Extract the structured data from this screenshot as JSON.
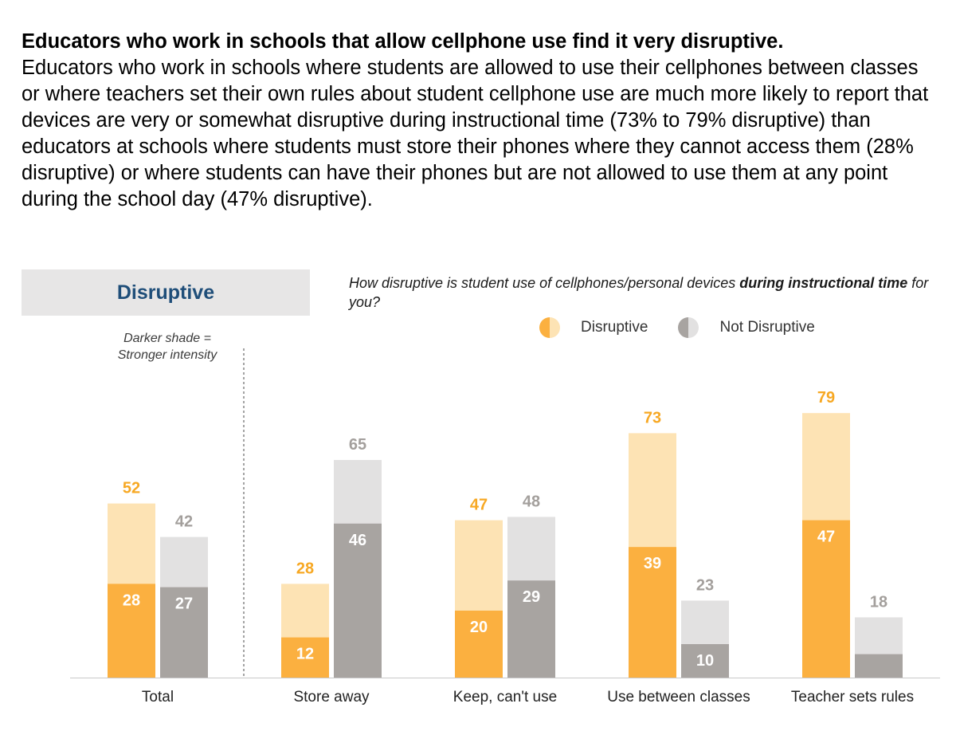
{
  "intro": {
    "headline": "Educators who work in schools that allow cellphone use find it very disruptive.",
    "body": "Educators who work in schools where students are allowed to use their cellphones between classes or where teachers set their own rules about student cellphone use are much more likely to report that devices are very or somewhat disruptive during instructional time (73% to 79% disruptive) than educators at schools where students must store their phones where they cannot access them (28% disruptive) or where students can have their phones but are not allowed to use them at any point during the school day (47% disruptive)."
  },
  "panel_title": "Disruptive",
  "shade_note": {
    "line1": "Darker shade =",
    "line2": "Stronger intensity"
  },
  "question": {
    "prefix": "How disruptive is student use of cellphones/personal devices ",
    "bold": "during instructional time",
    "suffix": " for you?"
  },
  "legend": {
    "disruptive": "Disruptive",
    "not_disruptive": "Not Disruptive"
  },
  "colors": {
    "disruptive_dark": "#fbb040",
    "disruptive_light": "#fde3b4",
    "not_disruptive_dark": "#a8a4a1",
    "not_disruptive_light": "#e2e1e1",
    "disruptive_text": "#f7a823",
    "not_disruptive_text": "#a39f9c"
  },
  "chart_data": {
    "type": "bar",
    "stacked": true,
    "categories": [
      "Total",
      "Store away",
      "Keep, can't use",
      "Use between classes",
      "Teacher sets rules"
    ],
    "series": [
      {
        "name": "Disruptive",
        "total": [
          52,
          28,
          47,
          73,
          79
        ],
        "strong": [
          28,
          12,
          20,
          39,
          47
        ]
      },
      {
        "name": "Not Disruptive",
        "total": [
          42,
          65,
          48,
          23,
          18
        ],
        "strong": [
          27,
          46,
          29,
          10,
          null
        ]
      }
    ],
    "title": "How disruptive is student use of cellphones/personal devices during instructional time for you?",
    "xlabel": "",
    "ylabel": "",
    "ylim": [
      0,
      100
    ]
  }
}
